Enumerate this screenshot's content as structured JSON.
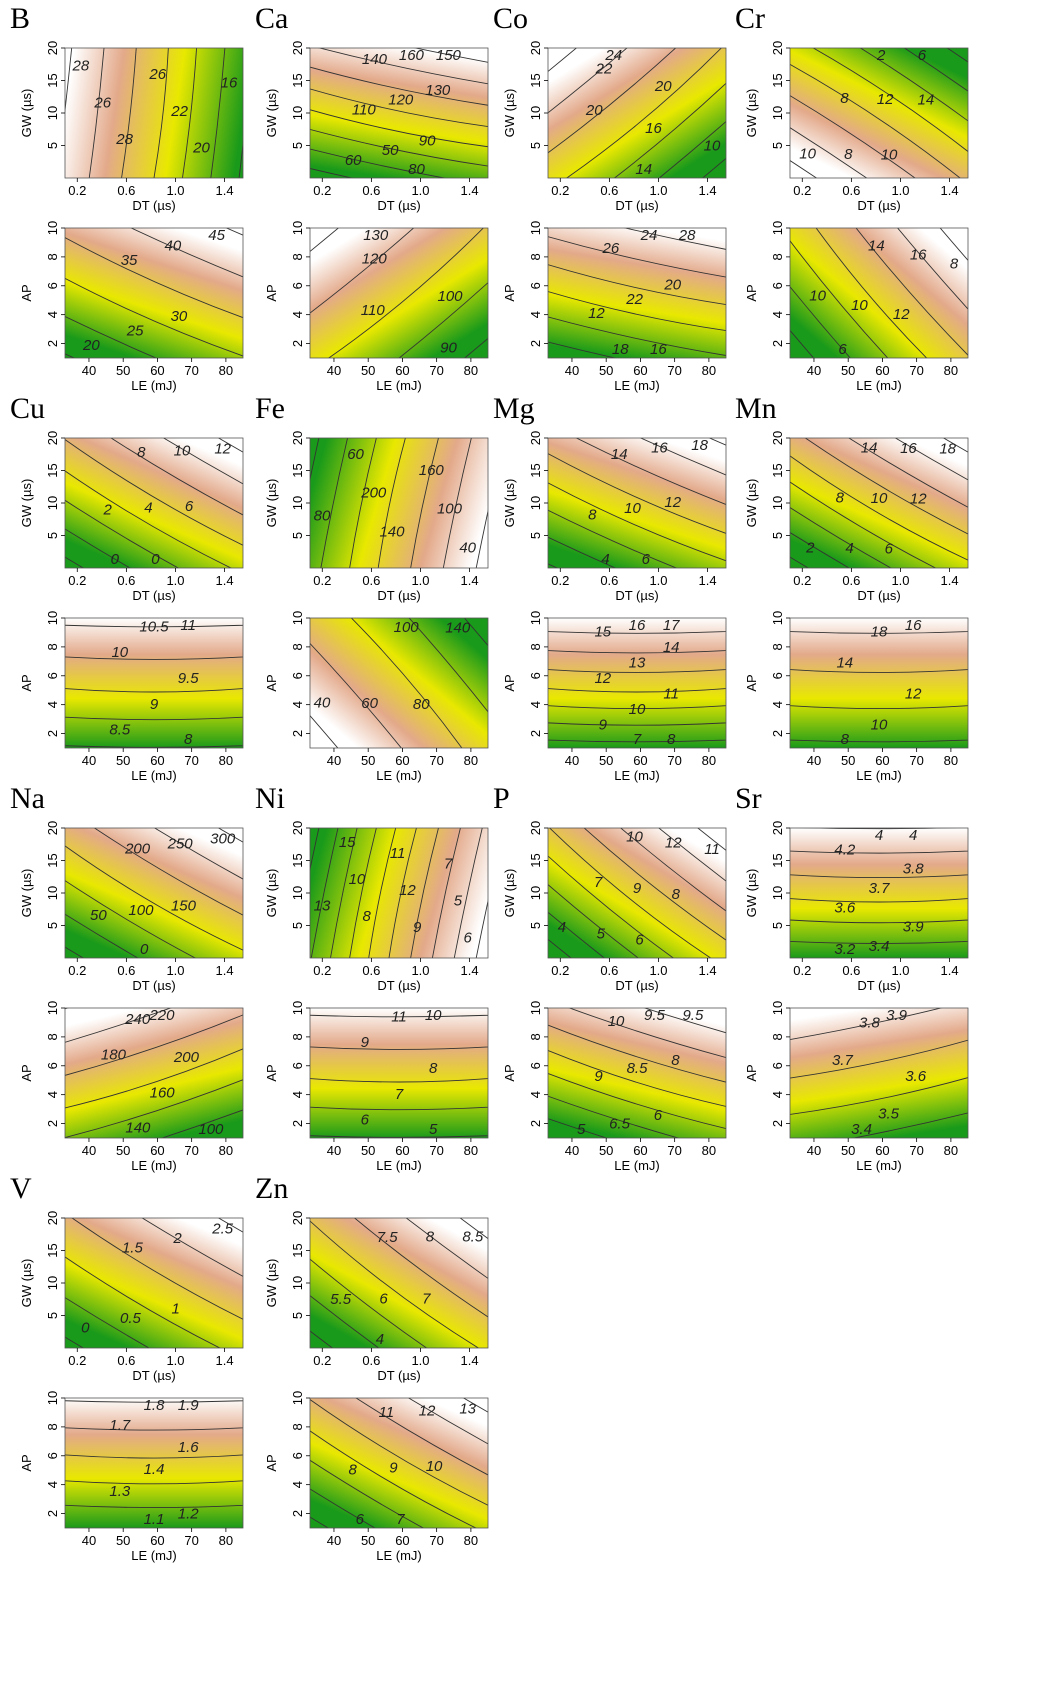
{
  "chart_data": {
    "type": "heatmap",
    "subtype": "contour",
    "color_scale": {
      "low": "#1a9a1a",
      "mid": "#e8e800",
      "high_warm": "#e3a98a",
      "highest": "#ffffff"
    },
    "grid": false,
    "top_axes": {
      "xlabel": "DT (µs)",
      "ylabel": "GW (µs)",
      "xlim": [
        0.1,
        1.55
      ],
      "ylim": [
        0,
        20
      ],
      "xticks": [
        "0.2",
        "0.6",
        "1.0",
        "1.4"
      ],
      "yticks": [
        "5",
        "10",
        "15",
        "20"
      ]
    },
    "bottom_axes": {
      "xlabel": "LE (mJ)",
      "ylabel": "AP",
      "xlim": [
        33,
        85
      ],
      "ylim": [
        1,
        10
      ],
      "xticks": [
        "40",
        "50",
        "60",
        "70",
        "80"
      ],
      "yticks": [
        "2",
        "4",
        "6",
        "8",
        "10"
      ]
    },
    "elements": [
      {
        "element": "B",
        "top": {
          "contours": [
            "28",
            "26",
            "28",
            "26",
            "22",
            "20",
            "16"
          ]
        },
        "bottom": {
          "contours": [
            "45",
            "40",
            "35",
            "30",
            "25",
            "20"
          ]
        }
      },
      {
        "element": "Ca",
        "top": {
          "contours": [
            "150",
            "160",
            "140",
            "130",
            "120",
            "110",
            "90",
            "50",
            "60",
            "80"
          ]
        },
        "bottom": {
          "contours": [
            "130",
            "120",
            "110",
            "100",
            "90"
          ]
        }
      },
      {
        "element": "Co",
        "top": {
          "contours": [
            "24",
            "22",
            "20",
            "20",
            "16",
            "14",
            "10"
          ]
        },
        "bottom": {
          "contours": [
            "28",
            "24",
            "26",
            "20",
            "22",
            "12",
            "16",
            "18"
          ]
        }
      },
      {
        "element": "Cr",
        "top": {
          "contours": [
            "10",
            "8",
            "10",
            "8",
            "12",
            "14",
            "2",
            "6"
          ]
        },
        "bottom": {
          "contours": [
            "8",
            "16",
            "14",
            "12",
            "10",
            "10",
            "6"
          ]
        }
      },
      {
        "element": "Cu",
        "top": {
          "contours": [
            "12",
            "10",
            "8",
            "6",
            "4",
            "2",
            "0",
            "0"
          ]
        },
        "bottom": {
          "contours": [
            "11",
            "10.5",
            "10",
            "9.5",
            "9",
            "8.5",
            "8"
          ]
        }
      },
      {
        "element": "Fe",
        "top": {
          "contours": [
            "40",
            "100",
            "160",
            "140",
            "200",
            "60",
            "80"
          ]
        },
        "bottom": {
          "contours": [
            "40",
            "60",
            "80",
            "100",
            "140"
          ]
        }
      },
      {
        "element": "Mg",
        "top": {
          "contours": [
            "18",
            "16",
            "14",
            "12",
            "10",
            "8",
            "6",
            "4"
          ]
        },
        "bottom": {
          "contours": [
            "17",
            "16",
            "15",
            "14",
            "13",
            "12",
            "11",
            "10",
            "9",
            "8",
            "7"
          ]
        }
      },
      {
        "element": "Mn",
        "top": {
          "contours": [
            "18",
            "16",
            "14",
            "12",
            "10",
            "8",
            "6",
            "4",
            "2"
          ]
        },
        "bottom": {
          "contours": [
            "16",
            "18",
            "14",
            "12",
            "10",
            "8"
          ]
        }
      },
      {
        "element": "Na",
        "top": {
          "contours": [
            "300",
            "250",
            "200",
            "150",
            "100",
            "50",
            "0"
          ]
        },
        "bottom": {
          "contours": [
            "220",
            "240",
            "180",
            "200",
            "160",
            "140",
            "100"
          ]
        }
      },
      {
        "element": "Ni",
        "top": {
          "contours": [
            "6",
            "5",
            "7",
            "9",
            "12",
            "11",
            "8",
            "10",
            "15",
            "13"
          ]
        },
        "bottom": {
          "contours": [
            "10",
            "11",
            "9",
            "8",
            "7",
            "6",
            "5"
          ]
        }
      },
      {
        "element": "P",
        "top": {
          "contours": [
            "11",
            "12",
            "10",
            "8",
            "9",
            "7",
            "6",
            "5",
            "4"
          ]
        },
        "bottom": {
          "contours": [
            "9.5",
            "9.5",
            "10",
            "8",
            "8.5",
            "9",
            "6",
            "6.5",
            "5"
          ]
        }
      },
      {
        "element": "Sr",
        "top": {
          "contours": [
            "4",
            "4",
            "4.2",
            "3.8",
            "3.7",
            "3.6",
            "3.9",
            "3.4",
            "3.2"
          ]
        },
        "bottom": {
          "contours": [
            "3.9",
            "3.8",
            "3.7",
            "3.6",
            "3.5",
            "3.4"
          ]
        }
      },
      {
        "element": "V",
        "top": {
          "contours": [
            "2.5",
            "2",
            "1.5",
            "1",
            "0.5",
            "0"
          ]
        },
        "bottom": {
          "contours": [
            "1.9",
            "1.8",
            "1.7",
            "1.6",
            "1.4",
            "1.3",
            "1.2",
            "1.1"
          ]
        }
      },
      {
        "element": "Zn",
        "top": {
          "contours": [
            "8.5",
            "8",
            "7.5",
            "7",
            "6",
            "5.5",
            "4"
          ]
        },
        "bottom": {
          "contours": [
            "13",
            "12",
            "11",
            "10",
            "9",
            "8",
            "7",
            "6"
          ]
        }
      }
    ]
  }
}
